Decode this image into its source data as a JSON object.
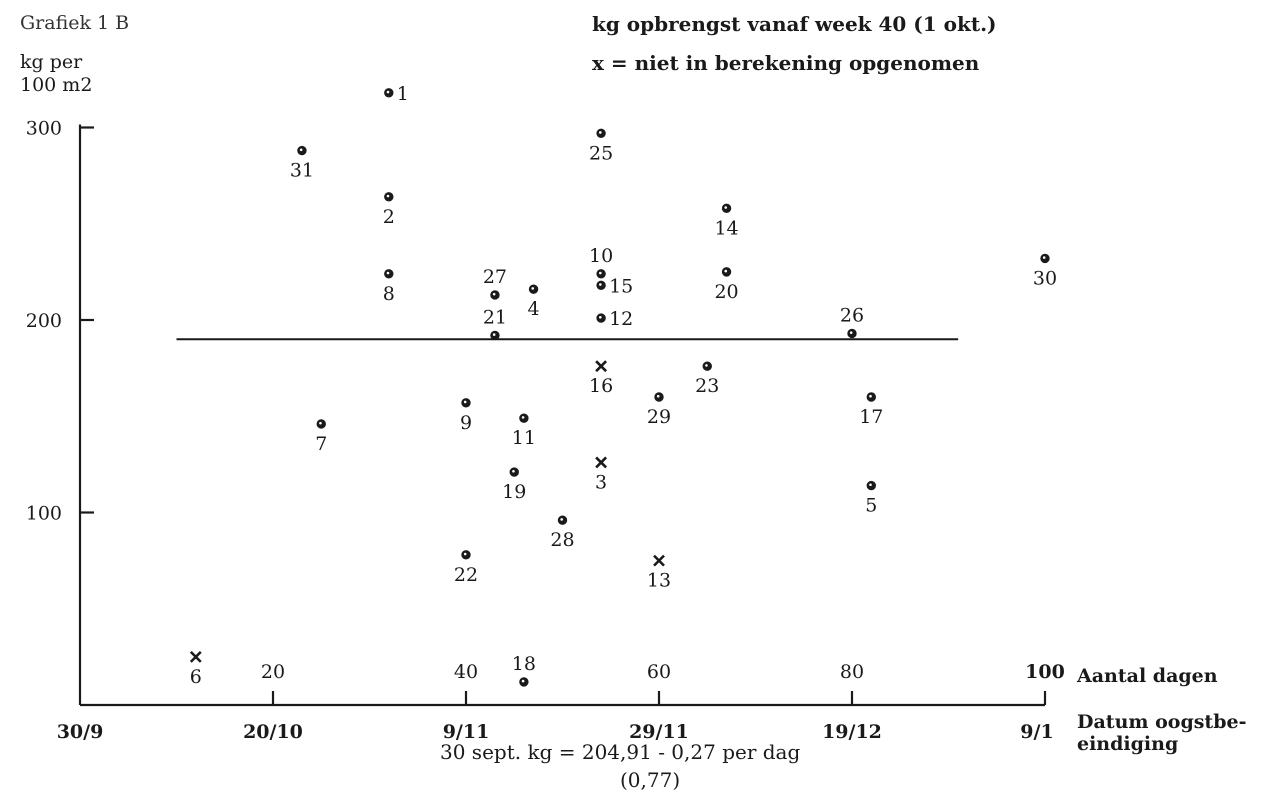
{
  "header": {
    "figure_label": "Grafiek 1 B",
    "y_unit_line1": "kg per",
    "y_unit_line2": "100 m2",
    "title": "kg opbrengst vanaf week 40 (1 okt.)",
    "legend_note": "x = niet in berekening opgenomen"
  },
  "footer": {
    "formula": "30 sept. kg = 204,91 - 0,27 per dag",
    "r_value": "(0,77)"
  },
  "chart_data": {
    "type": "scatter",
    "title": "kg opbrengst vanaf week 40 (1 okt.)",
    "ylabel": "kg per 100 m2",
    "xlabel": "Aantal dagen",
    "xlabel2": "Datum oogstbe-eindiging",
    "xlim": [
      0,
      100
    ],
    "ylim": [
      0,
      300
    ],
    "y_ticks": [
      100,
      200,
      300
    ],
    "x_ticks_days": [
      20,
      40,
      60,
      80,
      100
    ],
    "x_ticks_dates": [
      {
        "x": 0,
        "label": "30/9"
      },
      {
        "x": 20,
        "label": "20/10"
      },
      {
        "x": 40,
        "label": "9/11"
      },
      {
        "x": 60,
        "label": "29/11"
      },
      {
        "x": 80,
        "label": "19/12"
      },
      {
        "x": 100,
        "label": "9/1"
      }
    ],
    "reference_line": {
      "y": 190,
      "x_start": 10,
      "x_end": 91
    },
    "grid": false,
    "colors": {
      "ink": "#1a1a1a"
    },
    "points": [
      {
        "id": "1",
        "x": 32,
        "y": 318,
        "marker": "dot",
        "label_pos": "right"
      },
      {
        "id": "2",
        "x": 32,
        "y": 264,
        "marker": "dot",
        "label_pos": "below"
      },
      {
        "id": "3",
        "x": 54,
        "y": 126,
        "marker": "x",
        "label_pos": "below"
      },
      {
        "id": "4",
        "x": 47,
        "y": 216,
        "marker": "dot",
        "label_pos": "below"
      },
      {
        "id": "5",
        "x": 82,
        "y": 114,
        "marker": "dot",
        "label_pos": "below"
      },
      {
        "id": "6",
        "x": 12,
        "y": 25,
        "marker": "x",
        "label_pos": "below"
      },
      {
        "id": "7",
        "x": 25,
        "y": 146,
        "marker": "dot",
        "label_pos": "below"
      },
      {
        "id": "8",
        "x": 32,
        "y": 224,
        "marker": "dot",
        "label_pos": "below"
      },
      {
        "id": "9",
        "x": 40,
        "y": 157,
        "marker": "dot",
        "label_pos": "below"
      },
      {
        "id": "10",
        "x": 54,
        "y": 224,
        "marker": "dot",
        "label_pos": "above"
      },
      {
        "id": "11",
        "x": 46,
        "y": 149,
        "marker": "dot",
        "label_pos": "below"
      },
      {
        "id": "12",
        "x": 54,
        "y": 201,
        "marker": "dot",
        "label_pos": "right"
      },
      {
        "id": "13",
        "x": 60,
        "y": 75,
        "marker": "x",
        "label_pos": "below"
      },
      {
        "id": "14",
        "x": 67,
        "y": 258,
        "marker": "dot",
        "label_pos": "below"
      },
      {
        "id": "15",
        "x": 54,
        "y": 218,
        "marker": "dot",
        "label_pos": "right"
      },
      {
        "id": "16",
        "x": 54,
        "y": 176,
        "marker": "x",
        "label_pos": "below"
      },
      {
        "id": "17",
        "x": 82,
        "y": 160,
        "marker": "dot",
        "label_pos": "below"
      },
      {
        "id": "18",
        "x": 46,
        "y": 12,
        "marker": "dot",
        "label_pos": "above"
      },
      {
        "id": "19",
        "x": 45,
        "y": 121,
        "marker": "dot",
        "label_pos": "below"
      },
      {
        "id": "20",
        "x": 67,
        "y": 225,
        "marker": "dot",
        "label_pos": "below"
      },
      {
        "id": "21",
        "x": 43,
        "y": 192,
        "marker": "dot",
        "label_pos": "above"
      },
      {
        "id": "22",
        "x": 40,
        "y": 78,
        "marker": "dot",
        "label_pos": "below"
      },
      {
        "id": "23",
        "x": 65,
        "y": 176,
        "marker": "dot",
        "label_pos": "below"
      },
      {
        "id": "25",
        "x": 54,
        "y": 297,
        "marker": "dot",
        "label_pos": "below"
      },
      {
        "id": "26",
        "x": 80,
        "y": 193,
        "marker": "dot",
        "label_pos": "above"
      },
      {
        "id": "27",
        "x": 43,
        "y": 213,
        "marker": "dot",
        "label_pos": "above"
      },
      {
        "id": "28",
        "x": 50,
        "y": 96,
        "marker": "dot",
        "label_pos": "below"
      },
      {
        "id": "29",
        "x": 60,
        "y": 160,
        "marker": "dot",
        "label_pos": "below"
      },
      {
        "id": "30",
        "x": 100,
        "y": 232,
        "marker": "dot",
        "label_pos": "below"
      },
      {
        "id": "31",
        "x": 23,
        "y": 288,
        "marker": "dot",
        "label_pos": "below"
      }
    ]
  }
}
